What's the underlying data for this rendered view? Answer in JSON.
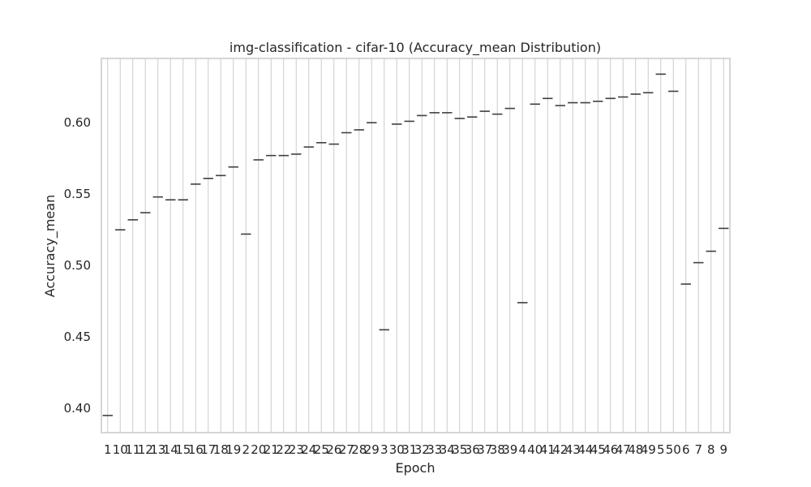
{
  "chart_data": {
    "type": "box",
    "title": "img-classification - cifar-10 (Accuracy_mean Distribution)",
    "xlabel": "Epoch",
    "ylabel": "Accuracy_mean",
    "ylim": [
      0.383,
      0.645
    ],
    "yticks": [
      0.4,
      0.45,
      0.5,
      0.55,
      0.6
    ],
    "ytick_labels": [
      "0.40",
      "0.45",
      "0.50",
      "0.55",
      "0.60"
    ],
    "grid": true,
    "colors": {
      "grid": "#cccccc",
      "mark": "#3f3f3f",
      "text": "#262626"
    },
    "categories": [
      "1",
      "10",
      "11",
      "12",
      "13",
      "14",
      "15",
      "16",
      "17",
      "18",
      "19",
      "2",
      "20",
      "21",
      "22",
      "23",
      "24",
      "25",
      "26",
      "27",
      "28",
      "29",
      "3",
      "30",
      "31",
      "32",
      "33",
      "34",
      "35",
      "36",
      "37",
      "38",
      "39",
      "4",
      "40",
      "41",
      "42",
      "43",
      "44",
      "45",
      "46",
      "47",
      "48",
      "49",
      "5",
      "50",
      "6",
      "7",
      "8",
      "9"
    ],
    "values": [
      0.395,
      0.525,
      0.532,
      0.537,
      0.548,
      0.546,
      0.546,
      0.557,
      0.561,
      0.563,
      0.569,
      0.522,
      0.574,
      0.577,
      0.577,
      0.578,
      0.583,
      0.586,
      0.585,
      0.593,
      0.595,
      0.6,
      0.455,
      0.599,
      0.601,
      0.605,
      0.607,
      0.607,
      0.603,
      0.604,
      0.608,
      0.606,
      0.61,
      0.474,
      0.613,
      0.617,
      0.612,
      0.614,
      0.614,
      0.615,
      0.617,
      0.618,
      0.62,
      0.621,
      0.634,
      0.622,
      0.487,
      0.502,
      0.51,
      0.526
    ]
  }
}
